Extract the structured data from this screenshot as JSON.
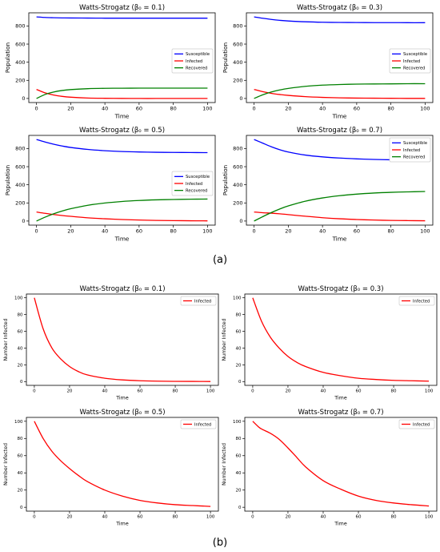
{
  "captions": {
    "a": "(a)",
    "b": "(b)"
  },
  "colors": {
    "susceptible": "#0000ff",
    "infected": "#ff0000",
    "recovered": "#008000",
    "axis": "#000000"
  },
  "chart_data": [
    {
      "type": "line",
      "title": "Watts-Strogatz (β₀ = 0.1)",
      "xlabel": "Time",
      "ylabel": "Population",
      "xlim": [
        -4.5,
        104.5
      ],
      "ylim": [
        -45,
        945
      ],
      "xticks": [
        0,
        20,
        40,
        60,
        80,
        100
      ],
      "yticks": [
        0,
        200,
        400,
        600,
        800
      ],
      "legend": "center-right",
      "grid": false,
      "x": [
        0,
        5,
        10,
        15,
        20,
        30,
        40,
        50,
        60,
        70,
        80,
        90,
        100
      ],
      "series": [
        {
          "name": "Susceptible",
          "color": "#0000ff",
          "values": [
            900,
            894,
            891,
            889,
            888,
            887,
            886,
            886,
            886,
            886,
            886,
            886,
            886
          ]
        },
        {
          "name": "Infected",
          "color": "#ff0000",
          "values": [
            100,
            62,
            38,
            23,
            14,
            5,
            2,
            1,
            0,
            0,
            0,
            0,
            0
          ]
        },
        {
          "name": "Recovered",
          "color": "#008000",
          "values": [
            0,
            44,
            71,
            88,
            98,
            108,
            112,
            113,
            114,
            114,
            114,
            114,
            114
          ]
        }
      ]
    },
    {
      "type": "line",
      "title": "Watts-Strogatz (β₀ = 0.3)",
      "xlabel": "Time",
      "ylabel": "Population",
      "xlim": [
        -4.5,
        104.5
      ],
      "ylim": [
        -45,
        945
      ],
      "xticks": [
        0,
        20,
        40,
        60,
        80,
        100
      ],
      "yticks": [
        0,
        200,
        400,
        600,
        800
      ],
      "legend": "center-right",
      "grid": false,
      "x": [
        0,
        5,
        10,
        15,
        20,
        30,
        40,
        50,
        60,
        70,
        80,
        90,
        100
      ],
      "series": [
        {
          "name": "Susceptible",
          "color": "#0000ff",
          "values": [
            900,
            885,
            872,
            862,
            855,
            846,
            841,
            839,
            838,
            837,
            837,
            836,
            836
          ]
        },
        {
          "name": "Infected",
          "color": "#ff0000",
          "values": [
            100,
            75,
            57,
            44,
            34,
            20,
            12,
            7,
            4,
            3,
            2,
            1,
            1
          ]
        },
        {
          "name": "Recovered",
          "color": "#008000",
          "values": [
            0,
            40,
            71,
            94,
            111,
            134,
            147,
            154,
            158,
            160,
            161,
            163,
            163
          ]
        }
      ]
    },
    {
      "type": "line",
      "title": "Watts-Strogatz (β₀ = 0.5)",
      "xlabel": "Time",
      "ylabel": "Population",
      "xlim": [
        -4.5,
        104.5
      ],
      "ylim": [
        -45,
        945
      ],
      "xticks": [
        0,
        20,
        40,
        60,
        80,
        100
      ],
      "yticks": [
        0,
        200,
        400,
        600,
        800
      ],
      "legend": "center-right",
      "grid": false,
      "x": [
        0,
        5,
        10,
        15,
        20,
        30,
        40,
        50,
        60,
        70,
        80,
        90,
        100
      ],
      "series": [
        {
          "name": "Susceptible",
          "color": "#0000ff",
          "values": [
            900,
            872,
            848,
            828,
            812,
            790,
            776,
            767,
            762,
            759,
            757,
            756,
            755
          ]
        },
        {
          "name": "Infected",
          "color": "#ff0000",
          "values": [
            100,
            85,
            72,
            61,
            52,
            36,
            25,
            17,
            11,
            7,
            5,
            3,
            2
          ]
        },
        {
          "name": "Recovered",
          "color": "#008000",
          "values": [
            0,
            43,
            80,
            111,
            136,
            174,
            199,
            216,
            227,
            234,
            238,
            241,
            243
          ]
        }
      ]
    },
    {
      "type": "line",
      "title": "Watts-Strogatz (β₀ = 0.7)",
      "xlabel": "Time",
      "ylabel": "Population",
      "xlim": [
        -4.5,
        104.5
      ],
      "ylim": [
        -45,
        945
      ],
      "xticks": [
        0,
        20,
        40,
        60,
        80,
        100
      ],
      "yticks": [
        0,
        200,
        400,
        600,
        800
      ],
      "legend": "upper-right",
      "grid": false,
      "x": [
        0,
        5,
        10,
        15,
        20,
        30,
        40,
        50,
        60,
        70,
        80,
        90,
        100
      ],
      "series": [
        {
          "name": "Susceptible",
          "color": "#0000ff",
          "values": [
            900,
            860,
            820,
            787,
            762,
            728,
            708,
            695,
            686,
            680,
            676,
            673,
            671
          ]
        },
        {
          "name": "Infected",
          "color": "#ff0000",
          "values": [
            100,
            92,
            87,
            80,
            71,
            53,
            37,
            25,
            17,
            11,
            7,
            5,
            3
          ]
        },
        {
          "name": "Recovered",
          "color": "#008000",
          "values": [
            0,
            48,
            93,
            133,
            167,
            219,
            255,
            280,
            297,
            309,
            317,
            322,
            326
          ]
        }
      ]
    },
    {
      "type": "line",
      "title": "Watts-Strogatz (β₀ = 0.1)",
      "xlabel": "Time",
      "ylabel": "Number Infected",
      "xlim": [
        -4.5,
        104.5
      ],
      "ylim": [
        -4.5,
        104.5
      ],
      "xticks": [
        0,
        20,
        40,
        60,
        80,
        100
      ],
      "yticks": [
        0,
        20,
        40,
        60,
        80,
        100
      ],
      "legend": "upper-right",
      "grid": false,
      "x": [
        0,
        5,
        10,
        15,
        20,
        25,
        30,
        40,
        50,
        60,
        70,
        80,
        90,
        100
      ],
      "series": [
        {
          "name": "Infected",
          "color": "#ff0000",
          "values": [
            100,
            63,
            40,
            27,
            18,
            12,
            8,
            4,
            2,
            1,
            0.5,
            0.3,
            0.2,
            0.1
          ]
        }
      ]
    },
    {
      "type": "line",
      "title": "Watts-Strogatz (β₀ = 0.3)",
      "xlabel": "Time",
      "ylabel": "Number Infected",
      "xlim": [
        -4.5,
        104.5
      ],
      "ylim": [
        -4.5,
        104.5
      ],
      "xticks": [
        0,
        20,
        40,
        60,
        80,
        100
      ],
      "yticks": [
        0,
        20,
        40,
        60,
        80,
        100
      ],
      "legend": "upper-right",
      "grid": false,
      "x": [
        0,
        5,
        10,
        15,
        20,
        25,
        30,
        40,
        50,
        60,
        70,
        80,
        90,
        100
      ],
      "series": [
        {
          "name": "Infected",
          "color": "#ff0000",
          "values": [
            100,
            72,
            53,
            40,
            30,
            23,
            18,
            11,
            7,
            4,
            2.5,
            1.5,
            1,
            0.5
          ]
        }
      ]
    },
    {
      "type": "line",
      "title": "Watts-Strogatz (β₀ = 0.5)",
      "xlabel": "Time",
      "ylabel": "Number Infected",
      "xlim": [
        -4.5,
        104.5
      ],
      "ylim": [
        -4.5,
        104.5
      ],
      "xticks": [
        0,
        20,
        40,
        60,
        80,
        100
      ],
      "yticks": [
        0,
        20,
        40,
        60,
        80,
        100
      ],
      "legend": "upper-right",
      "grid": false,
      "x": [
        0,
        5,
        10,
        15,
        20,
        25,
        30,
        40,
        50,
        60,
        70,
        80,
        90,
        100
      ],
      "series": [
        {
          "name": "Infected",
          "color": "#ff0000",
          "values": [
            100,
            80,
            65,
            54,
            45,
            37,
            30,
            20,
            13,
            8,
            5,
            3,
            2,
            1
          ]
        }
      ]
    },
    {
      "type": "line",
      "title": "Watts-Strogatz (β₀ = 0.7)",
      "xlabel": "Time",
      "ylabel": "Number Infected",
      "xlim": [
        -4.5,
        104.5
      ],
      "ylim": [
        -4.5,
        104.5
      ],
      "xticks": [
        0,
        20,
        40,
        60,
        80,
        100
      ],
      "yticks": [
        0,
        20,
        40,
        60,
        80,
        100
      ],
      "legend": "upper-right",
      "grid": false,
      "x": [
        0,
        3,
        5,
        10,
        15,
        20,
        25,
        30,
        40,
        50,
        60,
        70,
        80,
        90,
        100
      ],
      "series": [
        {
          "name": "Infected",
          "color": "#ff0000",
          "values": [
            100,
            94,
            91,
            86,
            79,
            69,
            58,
            47,
            31,
            21,
            13,
            8,
            5,
            3,
            1.5
          ]
        }
      ]
    }
  ]
}
